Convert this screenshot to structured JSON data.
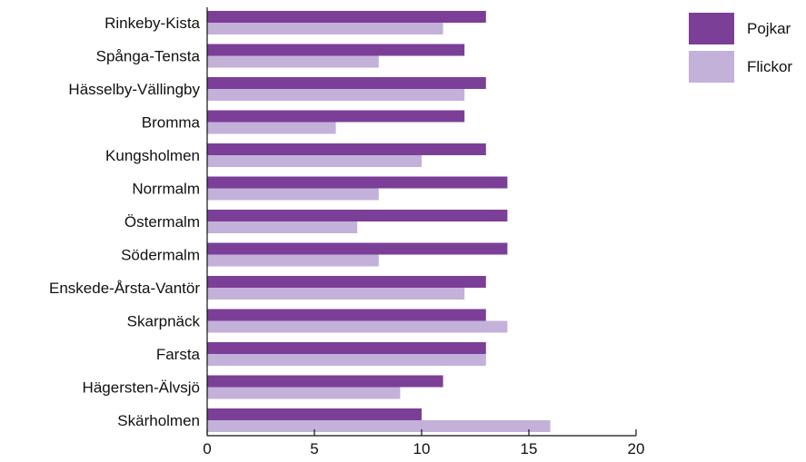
{
  "chart_data": {
    "type": "bar",
    "orientation": "horizontal",
    "categories": [
      "Rinkeby-Kista",
      "Spånga-Tensta",
      "Hässelby-Vällingby",
      "Bromma",
      "Kungsholmen",
      "Norrmalm",
      "Östermalm",
      "Södermalm",
      "Enskede-Årsta-Vantör",
      "Skarpnäck",
      "Farsta",
      "Hägersten-Älvsjö",
      "Skärholmen"
    ],
    "series": [
      {
        "name": "Pojkar",
        "color": "#7b3f98",
        "values": [
          13,
          12,
          13,
          12,
          13,
          14,
          14,
          14,
          13,
          13,
          13,
          11,
          10
        ]
      },
      {
        "name": "Flickor",
        "color": "#c3b1d9",
        "values": [
          11,
          8,
          12,
          6,
          10,
          8,
          7,
          8,
          12,
          14,
          13,
          9,
          16
        ]
      }
    ],
    "xlim": [
      0,
      20
    ],
    "xticks": [
      0,
      5,
      10,
      15,
      20
    ],
    "grid": false,
    "legend_position": "top-right"
  }
}
